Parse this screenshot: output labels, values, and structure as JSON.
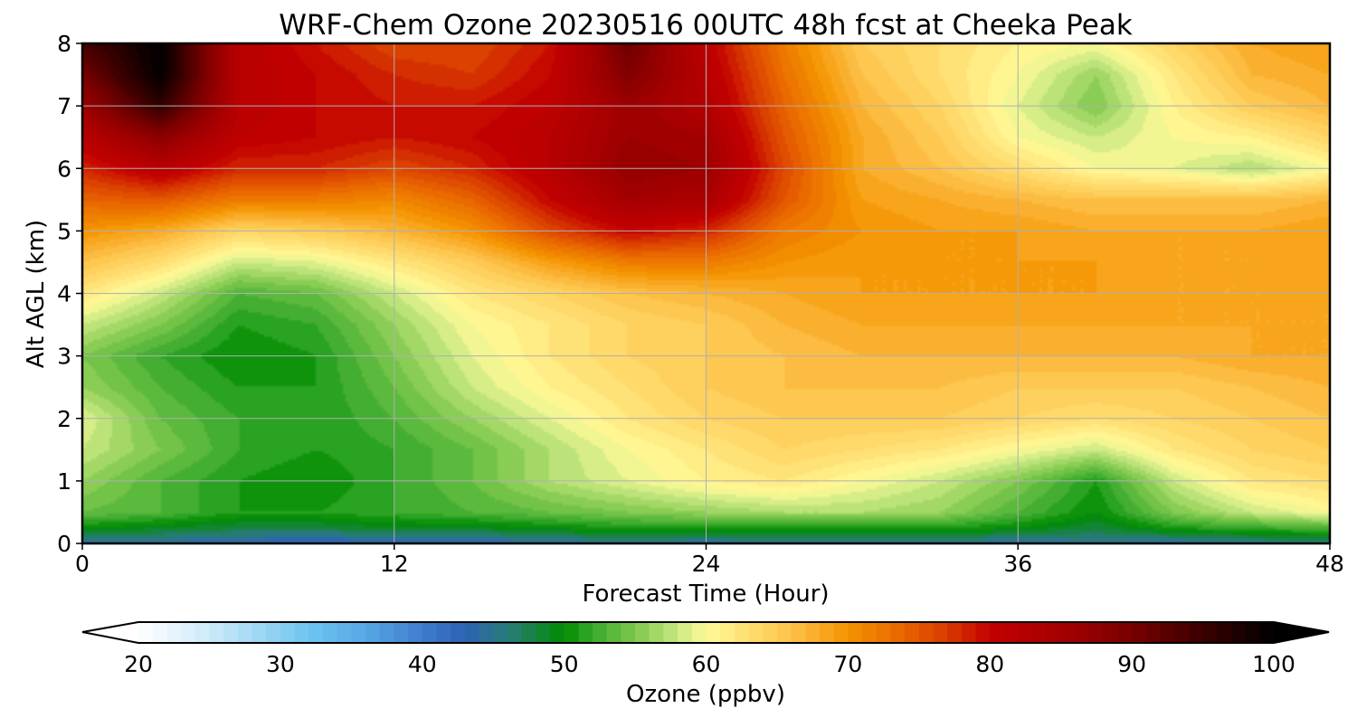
{
  "chart_data": {
    "type": "heatmap",
    "title": "WRF-Chem Ozone  20230516 00UTC 48h fcst at Cheeka Peak",
    "xlabel": "Forecast Time (Hour)",
    "ylabel": "Alt AGL (km)",
    "xlim": [
      0,
      48
    ],
    "ylim": [
      0,
      8
    ],
    "xticks": [
      "0",
      "12",
      "24",
      "36",
      "48"
    ],
    "yticks": [
      "0",
      "1",
      "2",
      "3",
      "4",
      "5",
      "6",
      "7",
      "8"
    ],
    "grid": true,
    "x": [
      0,
      3,
      6,
      9,
      12,
      15,
      18,
      21,
      24,
      27,
      30,
      33,
      36,
      39,
      42,
      45,
      48
    ],
    "y": [
      0,
      0.25,
      0.5,
      1,
      1.5,
      2,
      2.5,
      3,
      3.5,
      4,
      4.5,
      5,
      5.5,
      6,
      6.5,
      7,
      7.5,
      8
    ],
    "z": [
      [
        44,
        44,
        43,
        42,
        43,
        43,
        44,
        45,
        44,
        45,
        45,
        45,
        44,
        45,
        44,
        45,
        46
      ],
      [
        50,
        49,
        48,
        48,
        49,
        49,
        50,
        51,
        51,
        51,
        51,
        51,
        50,
        48,
        51,
        52,
        53
      ],
      [
        54,
        53,
        51,
        51,
        52,
        53,
        54,
        55,
        56,
        57,
        57,
        56,
        53,
        50,
        55,
        58,
        60
      ],
      [
        56,
        53,
        51,
        50,
        52,
        54,
        57,
        59,
        61,
        62,
        60,
        58,
        55,
        51,
        58,
        62,
        63
      ],
      [
        58,
        55,
        52,
        51,
        52,
        54,
        57,
        60,
        62,
        64,
        63,
        62,
        60,
        58,
        62,
        64,
        65
      ],
      [
        59,
        54,
        52,
        51,
        53,
        56,
        59,
        62,
        64,
        65,
        65,
        65,
        64,
        63,
        64,
        65,
        66
      ],
      [
        56,
        53,
        51,
        51,
        54,
        58,
        61,
        63,
        65,
        66,
        66,
        66,
        65,
        65,
        65,
        66,
        67
      ],
      [
        55,
        52,
        50,
        51,
        55,
        59,
        62,
        64,
        65,
        66,
        67,
        67,
        67,
        67,
        67,
        68,
        68
      ],
      [
        58,
        55,
        51,
        52,
        56,
        60,
        62,
        64,
        65,
        67,
        68,
        68,
        68,
        68,
        68,
        68,
        68
      ],
      [
        62,
        58,
        53,
        54,
        58,
        62,
        64,
        66,
        67,
        68,
        69,
        69,
        69,
        69,
        68,
        68,
        68
      ],
      [
        66,
        63,
        58,
        59,
        62,
        65,
        69,
        72,
        72,
        70,
        69,
        69,
        69,
        69,
        68,
        68,
        69
      ],
      [
        70,
        68,
        64,
        65,
        67,
        70,
        76,
        80,
        78,
        72,
        70,
        69,
        69,
        68,
        68,
        68,
        69
      ],
      [
        74,
        75,
        72,
        72,
        71,
        74,
        80,
        85,
        84,
        75,
        69,
        68,
        67,
        66,
        66,
        66,
        67
      ],
      [
        78,
        82,
        78,
        78,
        76,
        78,
        82,
        87,
        86,
        76,
        68,
        66,
        63,
        60,
        59,
        57,
        60
      ],
      [
        82,
        88,
        81,
        80,
        79,
        80,
        82,
        86,
        85,
        75,
        68,
        65,
        60,
        58,
        60,
        61,
        64
      ],
      [
        86,
        96,
        82,
        80,
        79,
        79,
        81,
        86,
        83,
        74,
        67,
        64,
        59,
        55,
        61,
        65,
        67
      ],
      [
        90,
        100,
        82,
        80,
        78,
        77,
        80,
        89,
        82,
        73,
        66,
        63,
        60,
        56,
        62,
        67,
        68
      ],
      [
        94,
        100,
        82,
        79,
        76,
        76,
        79,
        91,
        81,
        72,
        65,
        63,
        61,
        60,
        64,
        68,
        69
      ]
    ],
    "colorbar": {
      "label": "Ozone  (ppbv)",
      "min": 20,
      "max": 100,
      "extend": "both",
      "ticks": [
        "20",
        "30",
        "40",
        "50",
        "60",
        "70",
        "80",
        "90",
        "100"
      ],
      "stops": [
        {
          "v": 20,
          "c": "#ffffff"
        },
        {
          "v": 24,
          "c": "#d8eefa"
        },
        {
          "v": 28,
          "c": "#a6dbf5"
        },
        {
          "v": 32,
          "c": "#6ec4f0"
        },
        {
          "v": 36,
          "c": "#56a8e6"
        },
        {
          "v": 40,
          "c": "#3f7ccd"
        },
        {
          "v": 43,
          "c": "#2c62b4"
        },
        {
          "v": 46,
          "c": "#2a7b7a"
        },
        {
          "v": 50,
          "c": "#008c00"
        },
        {
          "v": 52,
          "c": "#38a92d"
        },
        {
          "v": 55,
          "c": "#7ec84c"
        },
        {
          "v": 58,
          "c": "#c8e882"
        },
        {
          "v": 60,
          "c": "#fffb99"
        },
        {
          "v": 63,
          "c": "#ffdd70"
        },
        {
          "v": 66,
          "c": "#fdc24a"
        },
        {
          "v": 70,
          "c": "#f59300"
        },
        {
          "v": 74,
          "c": "#e86400"
        },
        {
          "v": 77,
          "c": "#d83a00"
        },
        {
          "v": 80,
          "c": "#c30000"
        },
        {
          "v": 85,
          "c": "#a50000"
        },
        {
          "v": 90,
          "c": "#780000"
        },
        {
          "v": 95,
          "c": "#3a0000"
        },
        {
          "v": 100,
          "c": "#000000"
        }
      ]
    }
  }
}
